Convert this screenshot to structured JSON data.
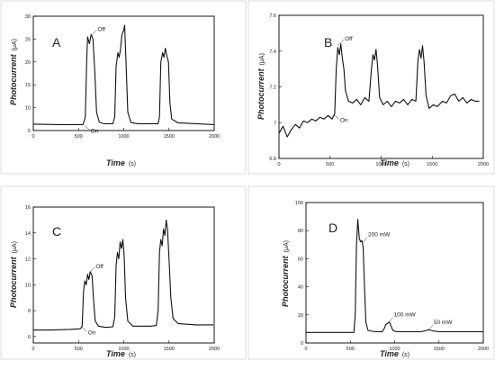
{
  "chart_data": [
    {
      "type": "line",
      "panel_label": "A",
      "x_axis": {
        "label": "Time",
        "unit": "(s)",
        "ticks": [
          0,
          500,
          1000,
          1500,
          2000
        ],
        "range": [
          0,
          2000
        ]
      },
      "y_axis": {
        "label": "Photocurrent",
        "unit": "(μA)",
        "ticks": [
          5,
          10,
          15,
          20,
          25,
          30
        ],
        "range": [
          5,
          30
        ]
      },
      "series": [
        {
          "points": [
            [
              0,
              6.4
            ],
            [
              300,
              6.3
            ],
            [
              550,
              6.3
            ],
            [
              575,
              8
            ],
            [
              590,
              20
            ],
            [
              600,
              25.5
            ],
            [
              620,
              24
            ],
            [
              640,
              26
            ],
            [
              660,
              25
            ],
            [
              680,
              18
            ],
            [
              700,
              9
            ],
            [
              730,
              6.8
            ],
            [
              780,
              6.5
            ],
            [
              880,
              6.5
            ],
            [
              900,
              8
            ],
            [
              915,
              19
            ],
            [
              935,
              22
            ],
            [
              950,
              21
            ],
            [
              965,
              23
            ],
            [
              980,
              26
            ],
            [
              1000,
              27
            ],
            [
              1010,
              28
            ],
            [
              1025,
              20
            ],
            [
              1045,
              9
            ],
            [
              1080,
              6.8
            ],
            [
              1150,
              6.5
            ],
            [
              1380,
              6.5
            ],
            [
              1395,
              8
            ],
            [
              1410,
              20
            ],
            [
              1430,
              22
            ],
            [
              1445,
              21
            ],
            [
              1460,
              23
            ],
            [
              1480,
              21
            ],
            [
              1495,
              20
            ],
            [
              1510,
              11
            ],
            [
              1530,
              7.5
            ],
            [
              1600,
              6.7
            ],
            [
              1800,
              6.5
            ],
            [
              2000,
              6.3
            ]
          ]
        }
      ],
      "annotations": [
        {
          "text": "Off",
          "x": 660,
          "y": 26
        },
        {
          "text": "On",
          "x": 575,
          "y": 6.3
        }
      ]
    },
    {
      "type": "line",
      "panel_label": "B",
      "x_axis": {
        "label": "Time",
        "unit": "(s)",
        "ticks": [
          0,
          500,
          1000,
          1500,
          2000
        ],
        "range": [
          0,
          2000
        ]
      },
      "y_axis": {
        "label": "Photocurrent",
        "unit": "(μA)",
        "ticks": [
          6.8,
          7.0,
          7.2,
          7.4,
          7.6
        ],
        "range": [
          6.8,
          7.6
        ]
      },
      "series": [
        {
          "points": [
            [
              0,
              6.94
            ],
            [
              40,
              6.98
            ],
            [
              80,
              6.92
            ],
            [
              120,
              6.96
            ],
            [
              160,
              6.99
            ],
            [
              200,
              6.97
            ],
            [
              240,
              7.01
            ],
            [
              280,
              7.0
            ],
            [
              320,
              7.02
            ],
            [
              360,
              7.01
            ],
            [
              400,
              7.03
            ],
            [
              440,
              7.02
            ],
            [
              480,
              7.04
            ],
            [
              520,
              7.02
            ],
            [
              545,
              7.05
            ],
            [
              560,
              7.3
            ],
            [
              575,
              7.42
            ],
            [
              590,
              7.38
            ],
            [
              605,
              7.44
            ],
            [
              620,
              7.36
            ],
            [
              635,
              7.3
            ],
            [
              650,
              7.18
            ],
            [
              680,
              7.12
            ],
            [
              720,
              7.11
            ],
            [
              760,
              7.13
            ],
            [
              800,
              7.1
            ],
            [
              840,
              7.14
            ],
            [
              880,
              7.12
            ],
            [
              905,
              7.3
            ],
            [
              920,
              7.38
            ],
            [
              935,
              7.35
            ],
            [
              950,
              7.41
            ],
            [
              965,
              7.32
            ],
            [
              985,
              7.14
            ],
            [
              1020,
              7.1
            ],
            [
              1060,
              7.12
            ],
            [
              1100,
              7.09
            ],
            [
              1140,
              7.12
            ],
            [
              1180,
              7.11
            ],
            [
              1220,
              7.13
            ],
            [
              1260,
              7.1
            ],
            [
              1300,
              7.13
            ],
            [
              1340,
              7.12
            ],
            [
              1360,
              7.35
            ],
            [
              1375,
              7.41
            ],
            [
              1390,
              7.36
            ],
            [
              1405,
              7.43
            ],
            [
              1420,
              7.34
            ],
            [
              1440,
              7.15
            ],
            [
              1470,
              7.08
            ],
            [
              1510,
              7.1
            ],
            [
              1550,
              7.09
            ],
            [
              1600,
              7.12
            ],
            [
              1640,
              7.11
            ],
            [
              1680,
              7.15
            ],
            [
              1720,
              7.16
            ],
            [
              1760,
              7.12
            ],
            [
              1800,
              7.14
            ],
            [
              1840,
              7.11
            ],
            [
              1880,
              7.13
            ],
            [
              1920,
              7.12
            ],
            [
              1960,
              7.12
            ]
          ]
        }
      ],
      "annotations": [
        {
          "text": "Off",
          "x": 600,
          "y": 7.44
        },
        {
          "text": "On",
          "x": 545,
          "y": 7.05
        }
      ]
    },
    {
      "type": "line",
      "panel_label": "C",
      "x_axis": {
        "label": "Time",
        "unit": "(s)",
        "ticks": [
          0,
          500,
          1000,
          1500,
          2000
        ],
        "range": [
          0,
          2000
        ]
      },
      "y_axis": {
        "label": "Photocurrent",
        "unit": "(μA)",
        "ticks": [
          6,
          8,
          10,
          12,
          14,
          16
        ],
        "range": [
          5.5,
          16
        ]
      },
      "series": [
        {
          "points": [
            [
              0,
              6.5
            ],
            [
              200,
              6.5
            ],
            [
              400,
              6.55
            ],
            [
              520,
              6.6
            ],
            [
              540,
              6.8
            ],
            [
              555,
              9.5
            ],
            [
              570,
              10.3
            ],
            [
              585,
              10
            ],
            [
              600,
              10.8
            ],
            [
              615,
              10.4
            ],
            [
              630,
              11
            ],
            [
              650,
              10.7
            ],
            [
              665,
              9
            ],
            [
              685,
              7.2
            ],
            [
              720,
              6.8
            ],
            [
              800,
              6.7
            ],
            [
              880,
              6.75
            ],
            [
              900,
              7.5
            ],
            [
              915,
              11.5
            ],
            [
              930,
              12.5
            ],
            [
              945,
              12
            ],
            [
              960,
              13.3
            ],
            [
              975,
              12.8
            ],
            [
              990,
              13.5
            ],
            [
              1005,
              12.2
            ],
            [
              1020,
              9
            ],
            [
              1045,
              7.2
            ],
            [
              1100,
              6.8
            ],
            [
              1300,
              6.8
            ],
            [
              1360,
              6.85
            ],
            [
              1380,
              8
            ],
            [
              1395,
              12.5
            ],
            [
              1410,
              13.5
            ],
            [
              1425,
              13
            ],
            [
              1440,
              14.3
            ],
            [
              1455,
              13.8
            ],
            [
              1470,
              15
            ],
            [
              1485,
              14.2
            ],
            [
              1500,
              12
            ],
            [
              1520,
              9
            ],
            [
              1545,
              7.4
            ],
            [
              1600,
              7
            ],
            [
              1800,
              6.9
            ],
            [
              1990,
              6.9
            ]
          ]
        }
      ],
      "annotations": [
        {
          "text": "Off",
          "x": 640,
          "y": 11
        },
        {
          "text": "On",
          "x": 545,
          "y": 6.8
        }
      ]
    },
    {
      "type": "line",
      "panel_label": "D",
      "x_axis": {
        "label": "Time",
        "unit": "(s)",
        "ticks": [
          0,
          500,
          1000,
          1500,
          2000
        ],
        "range": [
          0,
          2000
        ]
      },
      "y_axis": {
        "label": "Photocurrent",
        "unit": "(μA)",
        "ticks": [
          0,
          20,
          40,
          60,
          80,
          100
        ],
        "range": [
          0,
          100
        ]
      },
      "series": [
        {
          "points": [
            [
              0,
              7.5
            ],
            [
              300,
              7.5
            ],
            [
              540,
              7.5
            ],
            [
              555,
              20
            ],
            [
              570,
              70
            ],
            [
              585,
              88
            ],
            [
              600,
              75
            ],
            [
              615,
              72
            ],
            [
              630,
              73
            ],
            [
              645,
              68
            ],
            [
              660,
              40
            ],
            [
              675,
              15
            ],
            [
              700,
              9
            ],
            [
              780,
              8
            ],
            [
              860,
              8
            ],
            [
              880,
              10
            ],
            [
              900,
              13
            ],
            [
              920,
              14
            ],
            [
              940,
              15
            ],
            [
              960,
              12
            ],
            [
              980,
              9
            ],
            [
              1020,
              8
            ],
            [
              1300,
              8
            ],
            [
              1330,
              8.5
            ],
            [
              1360,
              9
            ],
            [
              1390,
              9.5
            ],
            [
              1410,
              9
            ],
            [
              1440,
              8.5
            ],
            [
              1500,
              8
            ],
            [
              1800,
              8
            ],
            [
              2000,
              8
            ]
          ]
        }
      ],
      "annotations": [
        {
          "text": "200 mW",
          "x": 660,
          "y": 72
        },
        {
          "text": "100 mW",
          "x": 950,
          "y": 15
        },
        {
          "text": "50 mW",
          "x": 1400,
          "y": 9.5
        }
      ]
    }
  ]
}
